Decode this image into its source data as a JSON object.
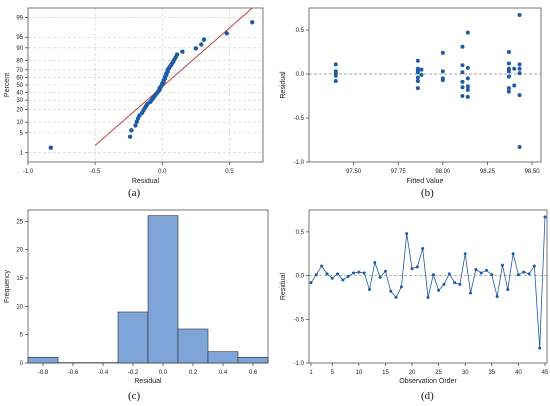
{
  "captions": [
    "(a)",
    "(b)",
    "(c)",
    "(d)"
  ],
  "chart_data": [
    {
      "type": "scatter",
      "title": "",
      "xlabel": "Residual",
      "ylabel": "Percent",
      "xlim": [
        -1.0,
        0.75
      ],
      "x_ticks": [
        "-1.0",
        "-0.5",
        "0.0",
        "0.5"
      ],
      "x_tick_values": [
        -1.0,
        -0.5,
        0.0,
        0.5
      ],
      "y_ticks": [
        "1",
        "5",
        "10",
        "20",
        "30",
        "40",
        "50",
        "60",
        "70",
        "80",
        "90",
        "95",
        "99"
      ],
      "y_tick_values": [
        1,
        5,
        10,
        20,
        30,
        40,
        50,
        60,
        70,
        80,
        90,
        95,
        99
      ],
      "grid": true,
      "fit_line": {
        "mean": 0.0,
        "sd": 0.24,
        "color": "#c0393b"
      },
      "x": [
        -0.83,
        -0.24,
        -0.23,
        -0.2,
        -0.19,
        -0.18,
        -0.17,
        -0.15,
        -0.14,
        -0.13,
        -0.12,
        -0.11,
        -0.09,
        -0.08,
        -0.07,
        -0.06,
        -0.05,
        -0.04,
        -0.03,
        -0.02,
        -0.02,
        -0.01,
        0.0,
        0.0,
        0.01,
        0.01,
        0.02,
        0.02,
        0.03,
        0.03,
        0.04,
        0.04,
        0.05,
        0.06,
        0.07,
        0.08,
        0.09,
        0.1,
        0.11,
        0.15,
        0.25,
        0.29,
        0.31,
        0.48,
        0.67
      ],
      "point_color": "#1f5aa6"
    },
    {
      "type": "scatter",
      "title": "",
      "xlabel": "Fitted Value",
      "ylabel": "Residual",
      "xlim": [
        97.25,
        98.55
      ],
      "ylim": [
        -1.0,
        0.75
      ],
      "x_ticks": [
        "97.50",
        "97.75",
        "98.00",
        "98.25",
        "98.50"
      ],
      "x_tick_values": [
        97.5,
        97.75,
        98.0,
        98.25,
        98.5
      ],
      "y_ticks": [
        "0.5",
        "0.0",
        "-0.5",
        "-1.0"
      ],
      "y_tick_values": [
        0.5,
        0.0,
        -0.5,
        -1.0
      ],
      "reference_line": 0.0,
      "points": [
        [
          97.4,
          0.11
        ],
        [
          97.4,
          0.03
        ],
        [
          97.4,
          0.01
        ],
        [
          97.4,
          -0.02
        ],
        [
          97.4,
          -0.08
        ],
        [
          97.86,
          0.15
        ],
        [
          97.86,
          0.06
        ],
        [
          97.86,
          0.05
        ],
        [
          97.86,
          0.02
        ],
        [
          97.86,
          -0.04
        ],
        [
          97.86,
          -0.08
        ],
        [
          97.86,
          -0.16
        ],
        [
          97.88,
          0.05
        ],
        [
          97.88,
          -0.01
        ],
        [
          98.0,
          0.24
        ],
        [
          98.0,
          0.03
        ],
        [
          98.0,
          -0.05
        ],
        [
          98.0,
          -0.07
        ],
        [
          98.11,
          0.31
        ],
        [
          98.11,
          0.1
        ],
        [
          98.11,
          0.02
        ],
        [
          98.11,
          -0.09
        ],
        [
          98.11,
          -0.15
        ],
        [
          98.11,
          -0.25
        ],
        [
          98.14,
          0.47
        ],
        [
          98.14,
          0.07
        ],
        [
          98.14,
          -0.05
        ],
        [
          98.14,
          -0.14
        ],
        [
          98.14,
          -0.18
        ],
        [
          98.14,
          -0.26
        ],
        [
          98.37,
          0.25
        ],
        [
          98.37,
          0.12
        ],
        [
          98.37,
          0.06
        ],
        [
          98.37,
          0.03
        ],
        [
          98.37,
          -0.03
        ],
        [
          98.37,
          -0.16
        ],
        [
          98.37,
          -0.2
        ],
        [
          98.4,
          0.06
        ],
        [
          98.4,
          -0.13
        ],
        [
          98.43,
          0.67
        ],
        [
          98.43,
          0.11
        ],
        [
          98.43,
          0.06
        ],
        [
          98.43,
          0.01
        ],
        [
          98.43,
          -0.24
        ],
        [
          98.43,
          -0.83
        ]
      ],
      "point_color": "#1f5aa6"
    },
    {
      "type": "bar",
      "title": "",
      "xlabel": "Residual",
      "ylabel": "Frequency",
      "xlim": [
        -0.9,
        0.7
      ],
      "ylim": [
        0,
        27
      ],
      "x_ticks": [
        "-0.8",
        "-0.6",
        "-0.4",
        "-0.2",
        "0.0",
        "0.2",
        "0.4",
        "0.6"
      ],
      "x_tick_values": [
        -0.8,
        -0.6,
        -0.4,
        -0.2,
        0.0,
        0.2,
        0.4,
        0.6
      ],
      "y_ticks": [
        "0",
        "5",
        "10",
        "15",
        "20",
        "25"
      ],
      "y_tick_values": [
        0,
        5,
        10,
        15,
        20,
        25
      ],
      "bins": [
        [
          -0.9,
          -0.7
        ],
        [
          -0.7,
          -0.5
        ],
        [
          -0.5,
          -0.3
        ],
        [
          -0.3,
          -0.1
        ],
        [
          -0.1,
          0.1
        ],
        [
          0.1,
          0.3
        ],
        [
          0.3,
          0.5
        ],
        [
          0.5,
          0.7
        ]
      ],
      "values": [
        1,
        0,
        0,
        9,
        26,
        6,
        2,
        1
      ],
      "bar_color": "#7ea4d8"
    },
    {
      "type": "line",
      "title": "",
      "xlabel": "Observation Order",
      "ylabel": "Residual",
      "xlim": [
        1,
        45
      ],
      "ylim": [
        -1.0,
        0.75
      ],
      "x_ticks": [
        "1",
        "5",
        "10",
        "15",
        "20",
        "25",
        "30",
        "35",
        "40",
        "45"
      ],
      "x_tick_values": [
        1,
        5,
        10,
        15,
        20,
        25,
        30,
        35,
        40,
        45
      ],
      "y_ticks": [
        "0.5",
        "0.0",
        "-0.5",
        "-1.0"
      ],
      "y_tick_values": [
        0.5,
        0.0,
        -0.5,
        -1.0
      ],
      "reference_line": 0.0,
      "values": [
        -0.08,
        0.01,
        0.11,
        0.02,
        -0.03,
        0.02,
        -0.05,
        -0.01,
        0.03,
        0.04,
        0.03,
        -0.16,
        0.15,
        -0.02,
        0.05,
        -0.18,
        -0.25,
        -0.13,
        0.48,
        0.08,
        0.1,
        0.31,
        -0.25,
        0.01,
        -0.17,
        -0.1,
        0.02,
        -0.08,
        -0.1,
        0.25,
        -0.2,
        0.07,
        0.03,
        0.06,
        0.01,
        -0.24,
        0.12,
        -0.16,
        0.25,
        0.01,
        0.04,
        0.02,
        0.11,
        -0.83,
        0.67
      ],
      "line_color": "#1f5aa6"
    }
  ]
}
